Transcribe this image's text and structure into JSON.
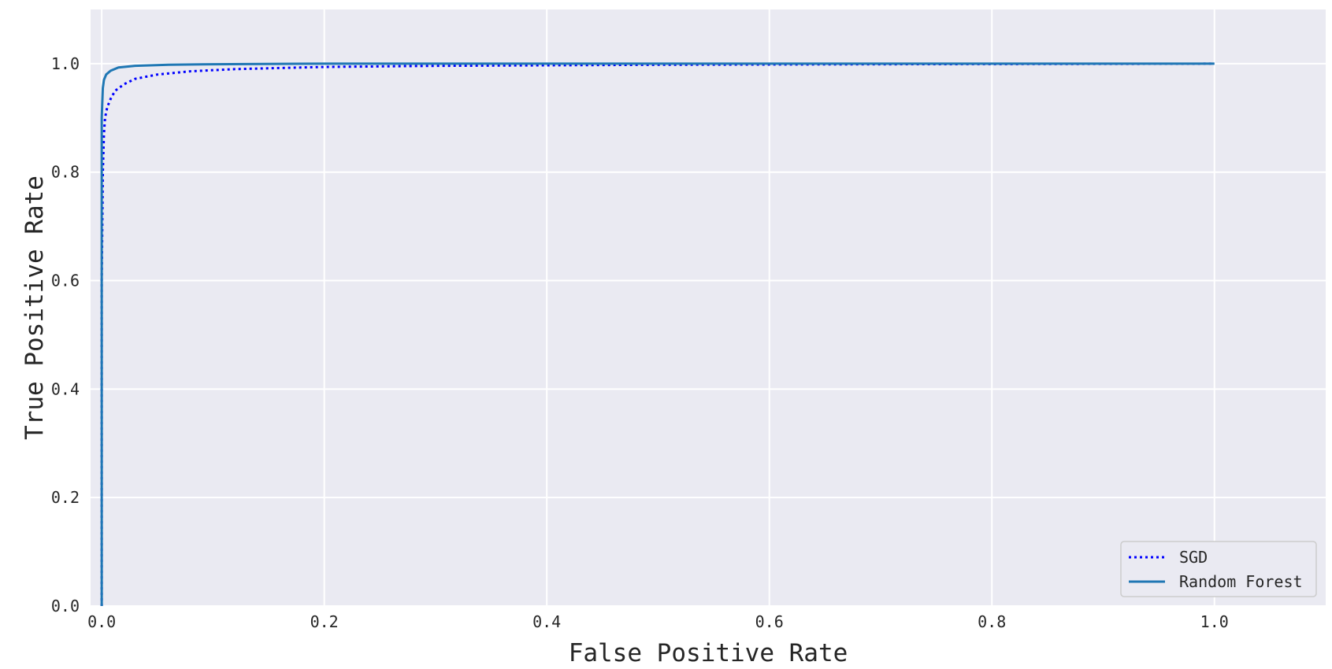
{
  "chart_data": {
    "type": "line",
    "title": "",
    "xlabel": "False Positive Rate",
    "ylabel": "True Positive Rate",
    "xlim": [
      -0.01,
      1.1
    ],
    "ylim": [
      0.0,
      1.1
    ],
    "x_ticks": [
      0.0,
      0.2,
      0.4,
      0.6,
      0.8,
      1.0
    ],
    "x_tick_labels": [
      "0.0",
      "0.2",
      "0.4",
      "0.6",
      "0.8",
      "1.0"
    ],
    "y_ticks": [
      0.0,
      0.2,
      0.4,
      0.6,
      0.8,
      1.0
    ],
    "y_tick_labels": [
      "0.0",
      "0.2",
      "0.4",
      "0.6",
      "0.8",
      "1.0"
    ],
    "grid": true,
    "legend_position": "bottom-right",
    "series": [
      {
        "name": "SGD",
        "line_style": "dotted",
        "color": "#0000ff",
        "x": [
          0.0,
          0.0,
          0.001,
          0.002,
          0.003,
          0.005,
          0.008,
          0.012,
          0.02,
          0.03,
          0.05,
          0.08,
          0.12,
          0.2,
          0.3,
          0.5,
          0.7,
          1.0
        ],
        "y": [
          0.0,
          0.6,
          0.8,
          0.87,
          0.9,
          0.92,
          0.935,
          0.95,
          0.962,
          0.972,
          0.98,
          0.986,
          0.99,
          0.994,
          0.996,
          0.998,
          0.999,
          1.0
        ]
      },
      {
        "name": "Random Forest",
        "line_style": "solid",
        "color": "#1f77b4",
        "x": [
          0.0,
          0.0,
          0.001,
          0.002,
          0.004,
          0.008,
          0.015,
          0.03,
          0.06,
          0.1,
          0.2,
          0.5,
          1.0
        ],
        "y": [
          0.0,
          0.9,
          0.955,
          0.97,
          0.98,
          0.987,
          0.993,
          0.996,
          0.998,
          0.999,
          1.0,
          1.0,
          1.0
        ]
      }
    ],
    "colors": {
      "plot_background": "#eaeaf2",
      "grid": "#ffffff"
    }
  }
}
